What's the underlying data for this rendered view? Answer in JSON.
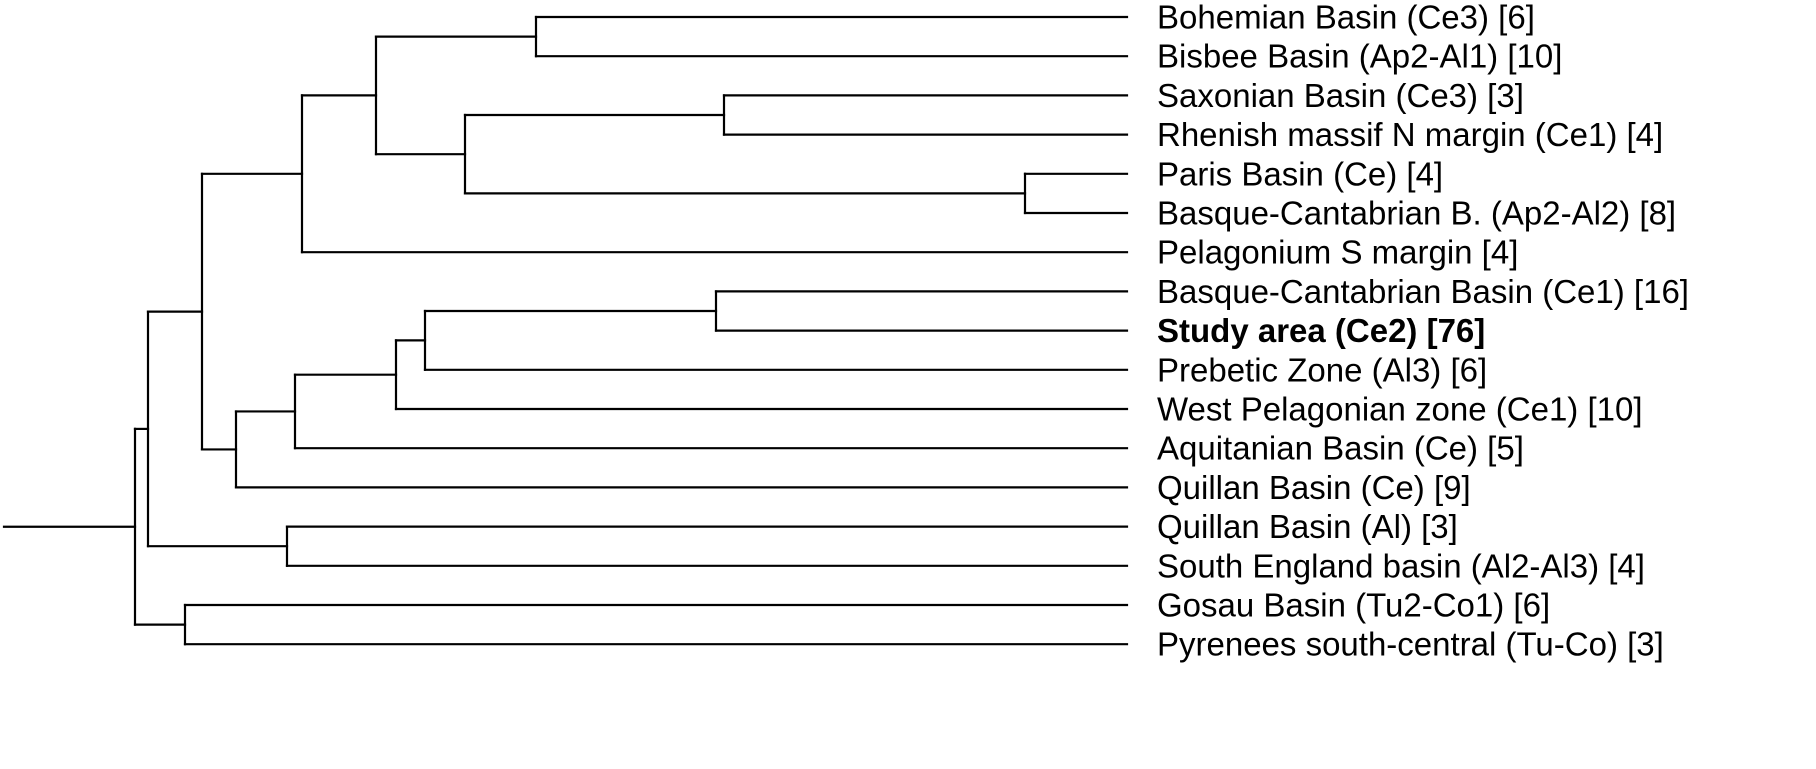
{
  "dendrogram": {
    "orientation": "leaves-right",
    "leaves": [
      {
        "label": "Bohemian Basin (Ce3) [6]",
        "bold": false
      },
      {
        "label": "Bisbee Basin (Ap2-Al1) [10]",
        "bold": false
      },
      {
        "label": "Saxonian Basin (Ce3) [3]",
        "bold": false
      },
      {
        "label": "Rhenish massif N margin (Ce1) [4]",
        "bold": false
      },
      {
        "label": "Paris Basin (Ce) [4]",
        "bold": false
      },
      {
        "label": "Basque-Cantabrian B. (Ap2-Al2) [8]",
        "bold": false
      },
      {
        "label": "Pelagonium S margin [4]",
        "bold": false
      },
      {
        "label": "Basque-Cantabrian Basin (Ce1) [16]",
        "bold": false
      },
      {
        "label": "Study area (Ce2) [76]",
        "bold": true
      },
      {
        "label": "Prebetic Zone (Al3) [6]",
        "bold": false
      },
      {
        "label": "West Pelagonian zone (Ce1) [10]",
        "bold": false
      },
      {
        "label": "Aquitanian Basin (Ce) [5]",
        "bold": false
      },
      {
        "label": "Quillan Basin (Ce) [9]",
        "bold": false
      },
      {
        "label": "Quillan Basin (Al) [3]",
        "bold": false
      },
      {
        "label": "South England basin (Al2-Al3) [4]",
        "bold": false
      },
      {
        "label": "Gosau Basin (Tu2-Co1) [6]",
        "bold": false
      },
      {
        "label": "Pyrenees south-central (Tu-Co) [3]",
        "bold": false
      }
    ],
    "line_color": "#000000"
  }
}
